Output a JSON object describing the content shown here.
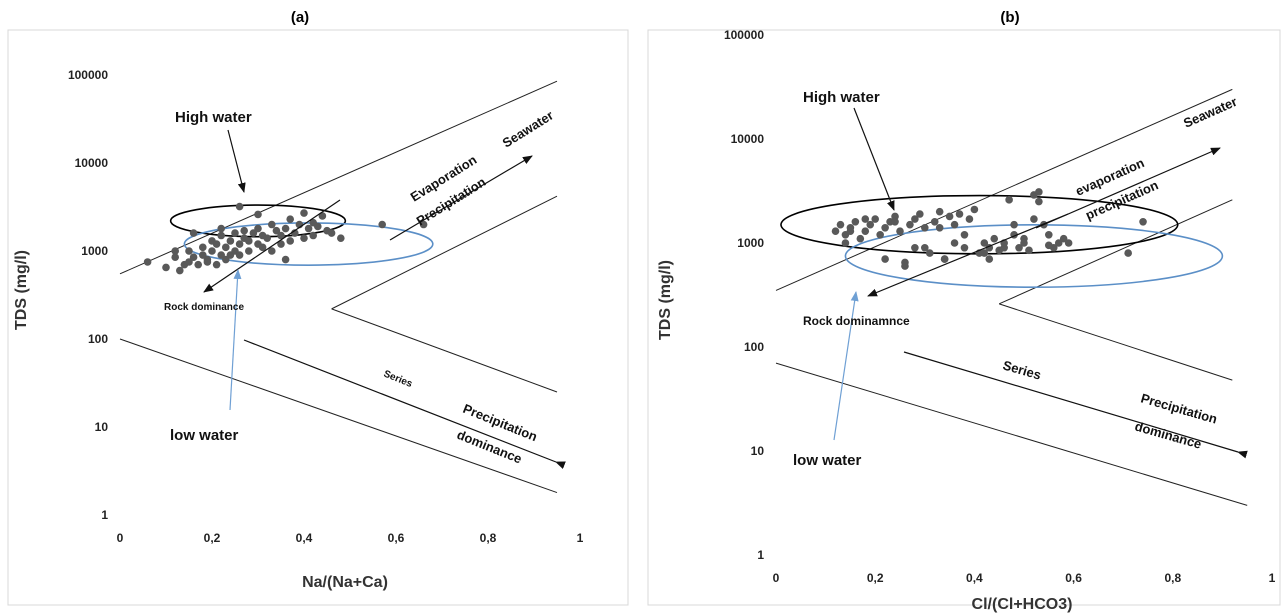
{
  "colors": {
    "point": "#595959",
    "high_water_ellipse": "#000000",
    "low_water_ellipse": "#5b8fc7",
    "low_water_pointer": "#6fa0d4"
  },
  "chart_data": [
    {
      "panel": "(a)",
      "type": "scatter",
      "title": "(a)",
      "xlabel": "Na/(Na+Ca)",
      "ylabel": "TDS (mg/l)",
      "xlim": [
        0,
        1
      ],
      "ylim": [
        1,
        100000
      ],
      "y_scale": "log",
      "grid": false,
      "x_ticks": [
        "0",
        "0,2",
        "0,4",
        "0,6",
        "0,8",
        "1"
      ],
      "y_ticks": [
        "1",
        "10",
        "100",
        "1000",
        "10000",
        "100000"
      ],
      "annotations": {
        "high_water": "High water",
        "low_water": "low water",
        "seawater": "Seawater",
        "evaporation": "Evaporation",
        "precipitation": "Precipitation",
        "rock": "Rock dominance",
        "series": "Series",
        "precip_dom_1": "Precipitation",
        "precip_dom_2": "dominance"
      },
      "envelope_lines": [
        [
          [
            0.0,
            550
          ],
          [
            0.95,
            85000
          ]
        ],
        [
          [
            0.0,
            100
          ],
          [
            0.95,
            1.8
          ]
        ],
        [
          [
            0.46,
            220
          ],
          [
            0.95,
            4200
          ]
        ],
        [
          [
            0.46,
            220
          ],
          [
            0.95,
            25
          ]
        ]
      ],
      "high_water_ellipse": {
        "cx": 0.3,
        "cy": 2200,
        "rx": 0.19,
        "ry_log10": 0.18
      },
      "low_water_ellipse": {
        "cx": 0.41,
        "cy": 1200,
        "rx": 0.27,
        "ry_log10": 0.24
      },
      "series": [
        {
          "x": [
            0.06,
            0.1,
            0.12,
            0.13,
            0.14,
            0.15,
            0.15,
            0.16,
            0.17,
            0.18,
            0.18,
            0.19,
            0.19,
            0.2,
            0.2,
            0.21,
            0.21,
            0.22,
            0.22,
            0.23,
            0.23,
            0.24,
            0.24,
            0.25,
            0.25,
            0.26,
            0.26,
            0.27,
            0.27,
            0.28,
            0.28,
            0.29,
            0.3,
            0.3,
            0.31,
            0.31,
            0.32,
            0.33,
            0.33,
            0.34,
            0.35,
            0.35,
            0.36,
            0.37,
            0.37,
            0.38,
            0.39,
            0.4,
            0.4,
            0.41,
            0.42,
            0.42,
            0.43,
            0.44,
            0.45,
            0.46,
            0.48,
            0.57,
            0.66,
            0.26,
            0.16,
            0.12,
            0.36,
            0.22,
            0.3
          ],
          "y": [
            750,
            650,
            850,
            600,
            700,
            750,
            1000,
            850,
            700,
            900,
            1100,
            800,
            750,
            1000,
            1300,
            700,
            1200,
            900,
            1500,
            800,
            1100,
            1300,
            900,
            1600,
            1000,
            1200,
            900,
            1400,
            1700,
            1000,
            1300,
            1600,
            1200,
            1800,
            1100,
            1500,
            1400,
            1000,
            2000,
            1700,
            1200,
            1500,
            1800,
            1300,
            2300,
            1600,
            2000,
            1400,
            2700,
            1800,
            1500,
            2100,
            1900,
            2500,
            1700,
            1600,
            1400,
            2000,
            2000,
            3200,
            1600,
            1000,
            800,
            1800,
            2600
          ]
        }
      ]
    },
    {
      "panel": "(b)",
      "type": "scatter",
      "title": "(b)",
      "xlabel": "Cl/(Cl+HCO3)",
      "ylabel": "TDS (mg/l)",
      "xlim": [
        0,
        1
      ],
      "ylim": [
        1,
        100000
      ],
      "y_scale": "log",
      "grid": false,
      "x_ticks": [
        "0",
        "0,2",
        "0,4",
        "0,6",
        "0,8",
        "1"
      ],
      "y_ticks": [
        "1",
        "10",
        "100",
        "1000",
        "10000",
        "100000"
      ],
      "annotations": {
        "high_water": "High water",
        "low_water": "low water",
        "seawater": "Seawater",
        "evaporation": "evaporation",
        "precipitation": "precipitation",
        "rock": "Rock dominamnce",
        "series": "Series",
        "precip_dom_1": "Precipitation",
        "precip_dom_2": "dominance"
      },
      "envelope_lines": [
        [
          [
            0.0,
            350
          ],
          [
            0.92,
            30000
          ]
        ],
        [
          [
            0.0,
            70
          ],
          [
            0.95,
            3
          ]
        ],
        [
          [
            0.45,
            260
          ],
          [
            0.92,
            2600
          ]
        ],
        [
          [
            0.45,
            260
          ],
          [
            0.92,
            48
          ]
        ]
      ],
      "high_water_ellipse": {
        "cx": 0.41,
        "cy": 1500,
        "rx": 0.4,
        "ry_log10": 0.28
      },
      "low_water_ellipse": {
        "cx": 0.52,
        "cy": 750,
        "rx": 0.38,
        "ry_log10": 0.3
      },
      "series": [
        {
          "x": [
            0.12,
            0.13,
            0.14,
            0.15,
            0.16,
            0.17,
            0.18,
            0.19,
            0.2,
            0.21,
            0.22,
            0.23,
            0.24,
            0.25,
            0.26,
            0.27,
            0.28,
            0.29,
            0.3,
            0.31,
            0.32,
            0.33,
            0.34,
            0.35,
            0.36,
            0.37,
            0.38,
            0.39,
            0.4,
            0.41,
            0.42,
            0.43,
            0.44,
            0.45,
            0.46,
            0.47,
            0.48,
            0.49,
            0.5,
            0.51,
            0.52,
            0.53,
            0.54,
            0.55,
            0.56,
            0.57,
            0.58,
            0.59,
            0.15,
            0.18,
            0.22,
            0.26,
            0.3,
            0.34,
            0.38,
            0.42,
            0.46,
            0.5,
            0.53,
            0.71,
            0.74,
            0.14,
            0.24,
            0.28,
            0.33,
            0.36,
            0.43,
            0.48,
            0.52,
            0.55
          ],
          "y": [
            1300,
            1500,
            1200,
            1400,
            1600,
            1100,
            1300,
            1500,
            1700,
            1200,
            1400,
            1600,
            1800,
            1300,
            650,
            1500,
            1700,
            1900,
            1400,
            800,
            1600,
            2000,
            700,
            1800,
            1500,
            1900,
            900,
            1700,
            2100,
            800,
            1000,
            900,
            1100,
            850,
            900,
            2600,
            1200,
            900,
            1000,
            850,
            2900,
            3100,
            1500,
            1200,
            900,
            1000,
            1100,
            1000,
            1300,
            1700,
            700,
            600,
            900,
            700,
            1200,
            800,
            1000,
            1100,
            2500,
            800,
            1600,
            1000,
            1600,
            900,
            1400,
            1000,
            700,
            1500,
            1700,
            950
          ]
        }
      ]
    }
  ]
}
